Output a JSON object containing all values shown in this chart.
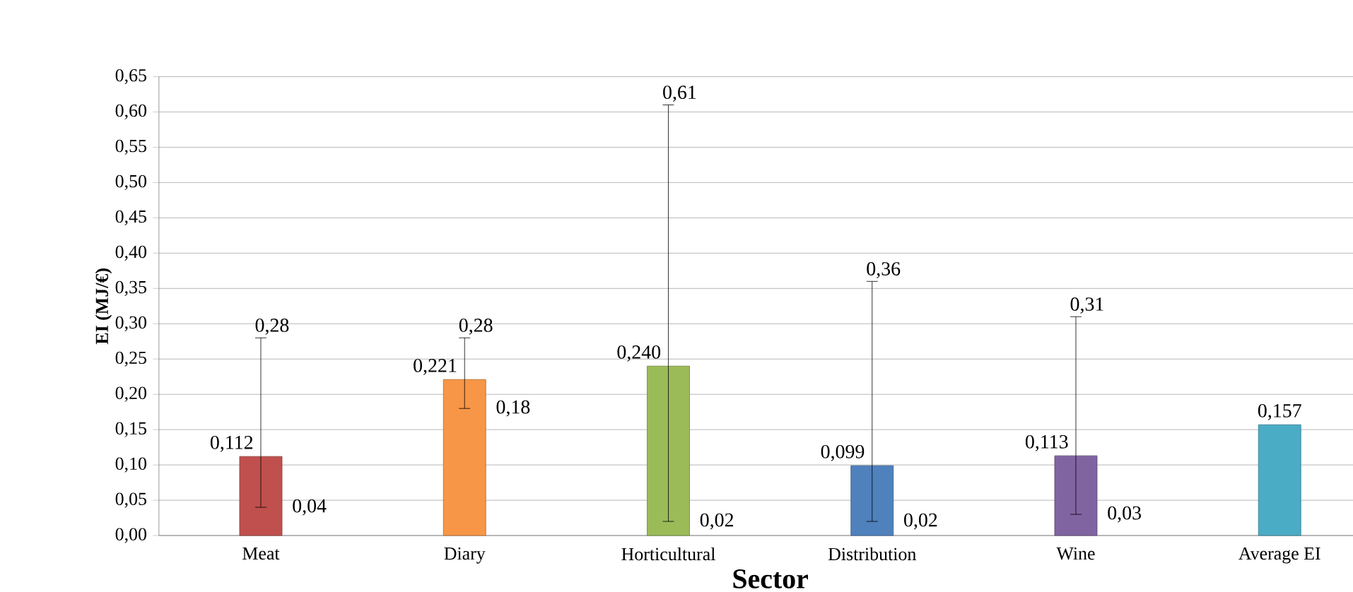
{
  "chart_data": {
    "type": "bar",
    "xlabel": "Sector",
    "ylabel": "EI (MJ/€)",
    "categories": [
      "Meat",
      "Diary",
      "Horticultural",
      "Distribution",
      "Wine",
      "Average EI"
    ],
    "values": [
      0.112,
      0.221,
      0.24,
      0.099,
      0.113,
      0.157
    ],
    "colors": [
      "#c0504d",
      "#f79646",
      "#9bbb59",
      "#4f81bd",
      "#8064a2",
      "#4bacc6"
    ],
    "errors": [
      [
        0.04,
        0.28
      ],
      [
        0.18,
        0.28
      ],
      [
        0.02,
        0.61
      ],
      [
        0.02,
        0.36
      ],
      [
        0.03,
        0.31
      ],
      null
    ],
    "value_labels": [
      "0,112",
      "0,221",
      "0,240",
      "0,099",
      "0,113",
      "0,157"
    ],
    "annotations": [
      "0,28",
      "0,04",
      "0,28",
      "0,18",
      "0,61",
      "0,02",
      "0,36",
      "0,02",
      "0,31",
      "0,03"
    ],
    "ylim": [
      0,
      0.65
    ],
    "yticks": [
      {
        "value": 0,
        "label": "0,00"
      },
      {
        "value": 0.05,
        "label": "0,05"
      },
      {
        "value": 0.1,
        "label": "0,10"
      },
      {
        "value": 0.15,
        "label": "0,15"
      },
      {
        "value": 0.2,
        "label": "0,20"
      },
      {
        "value": 0.25,
        "label": "0,25"
      },
      {
        "value": 0.3,
        "label": "0,30"
      },
      {
        "value": 0.35,
        "label": "0,35"
      },
      {
        "value": 0.4,
        "label": "0,40"
      },
      {
        "value": 0.45,
        "label": "0,45"
      },
      {
        "value": 0.5,
        "label": "0,50"
      },
      {
        "value": 0.55,
        "label": "0,55"
      },
      {
        "value": 0.6,
        "label": "0,60"
      },
      {
        "value": 0.65,
        "label": "0,65"
      }
    ],
    "grid": "y"
  }
}
